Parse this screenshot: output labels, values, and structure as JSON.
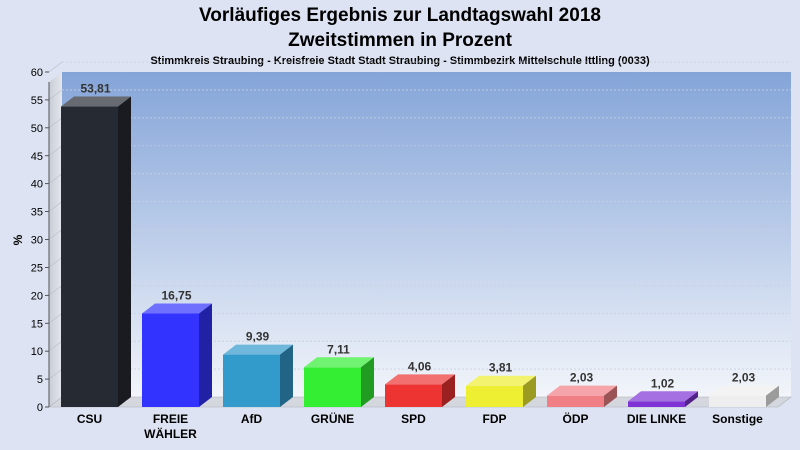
{
  "chart_data": {
    "type": "bar",
    "title": "Vorläufiges Ergebnis zur Landtagswahl 2018",
    "subtitle": "Zweitstimmen in Prozent",
    "description": "Stimmkreis Straubing - Kreisfreie Stadt Stadt Straubing - Stimmbezirk Mittelschule Ittling (0033)",
    "ylabel": "%",
    "ylim": [
      0,
      60
    ],
    "yticks": [
      0,
      5,
      10,
      15,
      20,
      25,
      30,
      35,
      40,
      45,
      50,
      55,
      60
    ],
    "grid": true,
    "categories": [
      "CSU",
      "FREIE WÄHLER",
      "AfD",
      "GRÜNE",
      "SPD",
      "FDP",
      "ÖDP",
      "DIE LINKE",
      "Sonstige"
    ],
    "values": [
      53.81,
      16.75,
      9.39,
      7.11,
      4.06,
      3.81,
      2.03,
      1.02,
      2.03
    ],
    "value_labels": [
      "53,81",
      "16,75",
      "9,39",
      "7,11",
      "4,06",
      "3,81",
      "2,03",
      "1,02",
      "2,03"
    ],
    "colors": [
      "#262a33",
      "#3333ff",
      "#339acc",
      "#33ee33",
      "#ee3333",
      "#eeee33",
      "#f07f85",
      "#7f33d4",
      "#eeeeee"
    ]
  }
}
